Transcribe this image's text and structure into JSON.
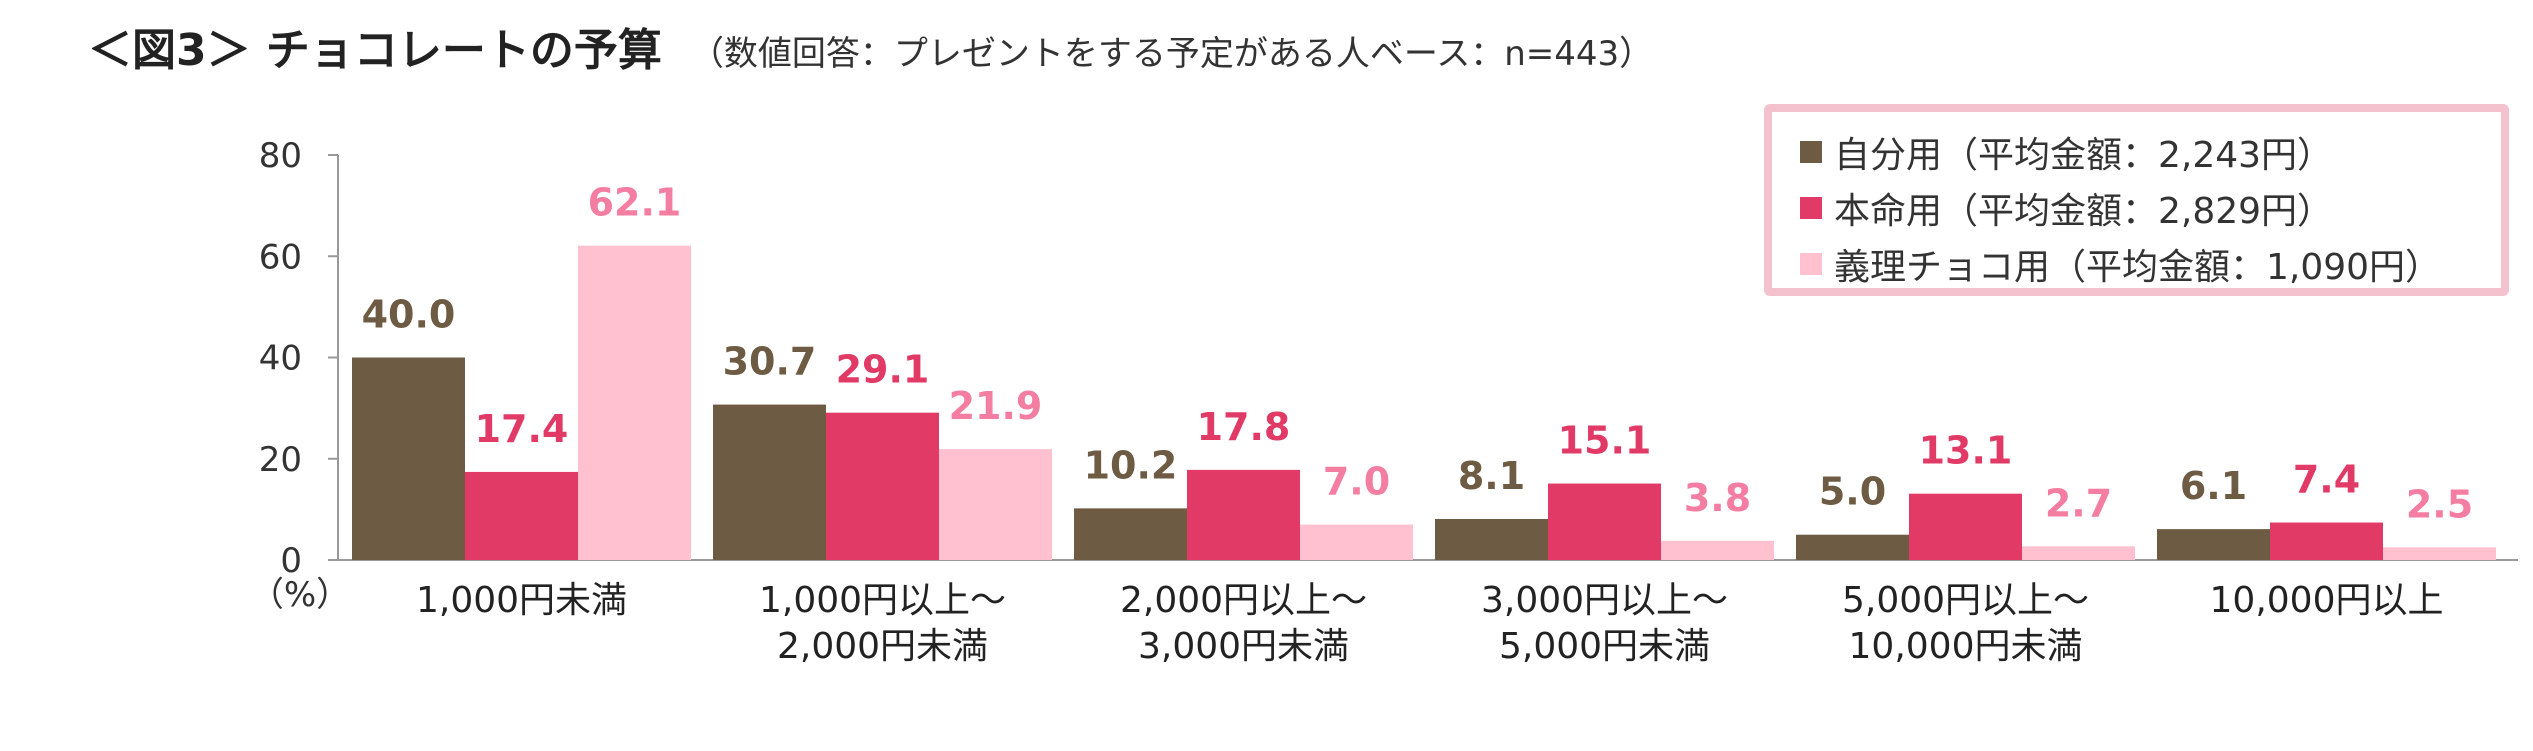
{
  "title": "＜図3＞ チョコレートの予算",
  "subtitle": "（数値回答：プレゼントをする予定がある人ベース：n=443）",
  "colors": {
    "series": [
      "#6E5B43",
      "#E23A66",
      "#FFC1CF"
    ],
    "labels": [
      "#6E5B43",
      "#E23A66",
      "#F37EA1"
    ],
    "axis": "#999999"
  },
  "legend": [
    "自分用（平均金額：2,243円）",
    "本命用（平均金額：2,829円）",
    "義理チョコ用（平均金額：1,090円）"
  ],
  "chart_data": {
    "type": "bar",
    "title": "チョコレートの予算",
    "unit_label": "（%）",
    "ylim": [
      0,
      80
    ],
    "yticks": [
      0,
      20,
      40,
      60,
      80
    ],
    "grid": false,
    "legend_position": "top-right",
    "categories": [
      [
        "1,000円未満"
      ],
      [
        "1,000円以上～",
        "2,000円未満"
      ],
      [
        "2,000円以上～",
        "3,000円未満"
      ],
      [
        "3,000円以上～",
        "5,000円未満"
      ],
      [
        "5,000円以上～",
        "10,000円未満"
      ],
      [
        "10,000円以上"
      ]
    ],
    "series": [
      {
        "name": "自分用（平均金額：2,243円）",
        "values": [
          40.0,
          30.7,
          10.2,
          8.1,
          5.0,
          6.1
        ]
      },
      {
        "name": "本命用（平均金額：2,829円）",
        "values": [
          17.4,
          29.1,
          17.8,
          15.1,
          13.1,
          7.4
        ]
      },
      {
        "name": "義理チョコ用（平均金額：1,090円）",
        "values": [
          62.1,
          21.9,
          7.0,
          3.8,
          2.7,
          2.5
        ]
      }
    ]
  }
}
